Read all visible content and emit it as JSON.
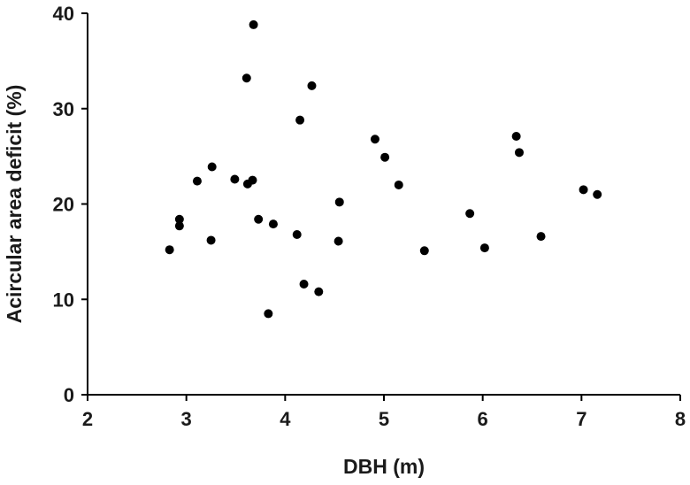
{
  "colors": {
    "axis": "#000000",
    "marker": "#000000",
    "background": "#ffffff"
  },
  "chart_data": {
    "type": "scatter",
    "title": "",
    "xlabel": "DBH (m)",
    "ylabel": "Acircular area deficit (%)",
    "xlim": [
      2,
      8
    ],
    "ylim": [
      0,
      40
    ],
    "xticks": [
      "2",
      "3",
      "4",
      "5",
      "6",
      "7",
      "8"
    ],
    "yticks": [
      "0",
      "10",
      "20",
      "30",
      "40"
    ],
    "grid": false,
    "legend": "none",
    "series": [
      {
        "points": [
          [
            2.83,
            15.2
          ],
          [
            2.93,
            18.4
          ],
          [
            2.93,
            17.7
          ],
          [
            3.11,
            22.4
          ],
          [
            3.25,
            16.2
          ],
          [
            3.26,
            23.9
          ],
          [
            3.49,
            22.6
          ],
          [
            3.61,
            33.2
          ],
          [
            3.62,
            22.1
          ],
          [
            3.67,
            22.5
          ],
          [
            3.68,
            38.8
          ],
          [
            3.73,
            18.4
          ],
          [
            3.83,
            8.5
          ],
          [
            3.88,
            17.9
          ],
          [
            4.12,
            16.8
          ],
          [
            4.15,
            28.8
          ],
          [
            4.19,
            11.6
          ],
          [
            4.27,
            32.4
          ],
          [
            4.34,
            10.8
          ],
          [
            4.54,
            16.1
          ],
          [
            4.55,
            20.2
          ],
          [
            4.91,
            26.8
          ],
          [
            5.01,
            24.9
          ],
          [
            5.15,
            22.0
          ],
          [
            5.41,
            15.1
          ],
          [
            5.87,
            19.0
          ],
          [
            6.02,
            15.4
          ],
          [
            6.34,
            27.1
          ],
          [
            6.37,
            25.4
          ],
          [
            6.59,
            16.6
          ],
          [
            7.02,
            21.5
          ],
          [
            7.16,
            21.0
          ]
        ]
      }
    ]
  }
}
